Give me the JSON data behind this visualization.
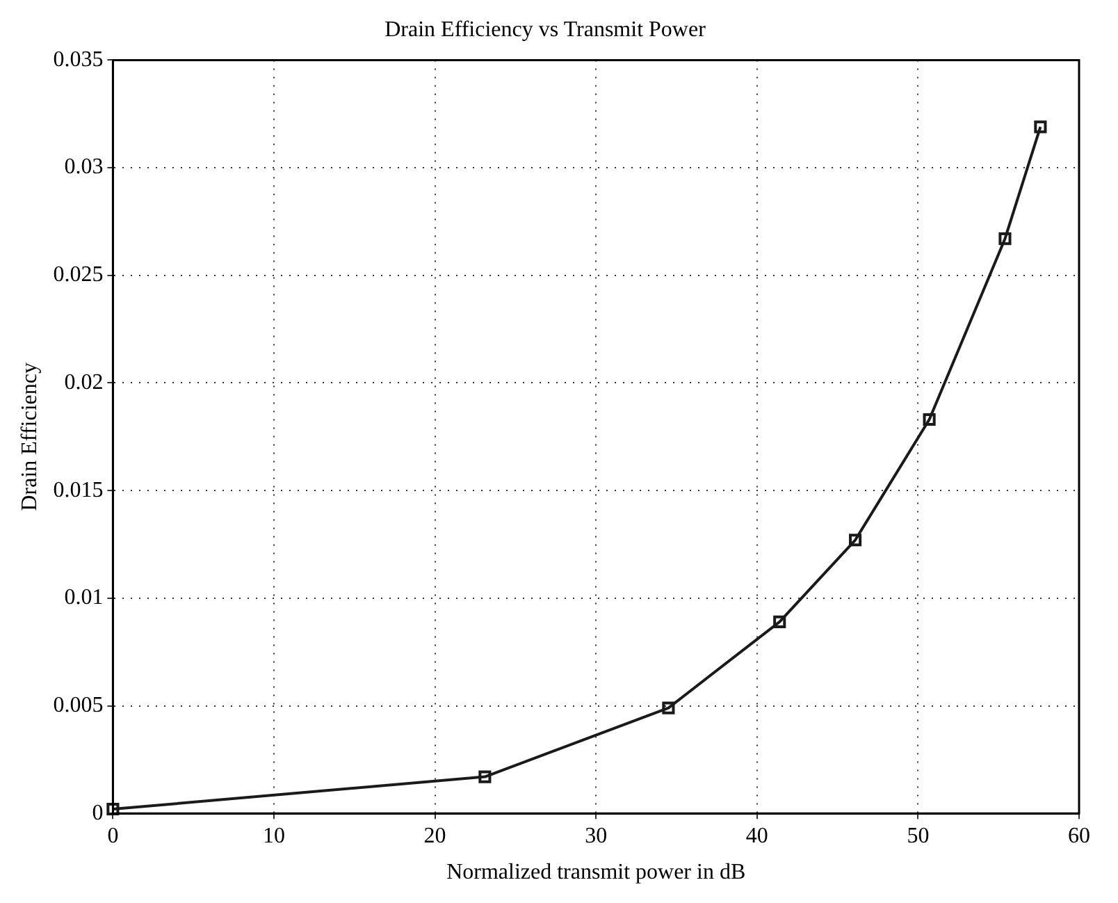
{
  "chart_data": {
    "type": "line",
    "title": "Drain Efficiency vs Transmit Power",
    "xlabel": "Normalized transmit power in dB",
    "ylabel": "Drain Efficiency",
    "x": [
      0,
      23.1,
      34.5,
      41.4,
      46.1,
      50.7,
      55.4,
      57.6
    ],
    "series": [
      {
        "color": "#1a1a1a",
        "values": [
          0.0002,
          0.0017,
          0.0049,
          0.0089,
          0.0127,
          0.0183,
          0.0267,
          0.0319
        ]
      }
    ],
    "xlim": [
      0,
      60
    ],
    "xticks": [
      0,
      10,
      20,
      30,
      40,
      50,
      60
    ],
    "ylim": [
      0,
      0.035
    ],
    "yticks": [
      0,
      0.005,
      0.01,
      0.015,
      0.02,
      0.025,
      0.03,
      0.035
    ],
    "grid": true,
    "legend": false,
    "marker": "square",
    "line_style": "solid"
  }
}
